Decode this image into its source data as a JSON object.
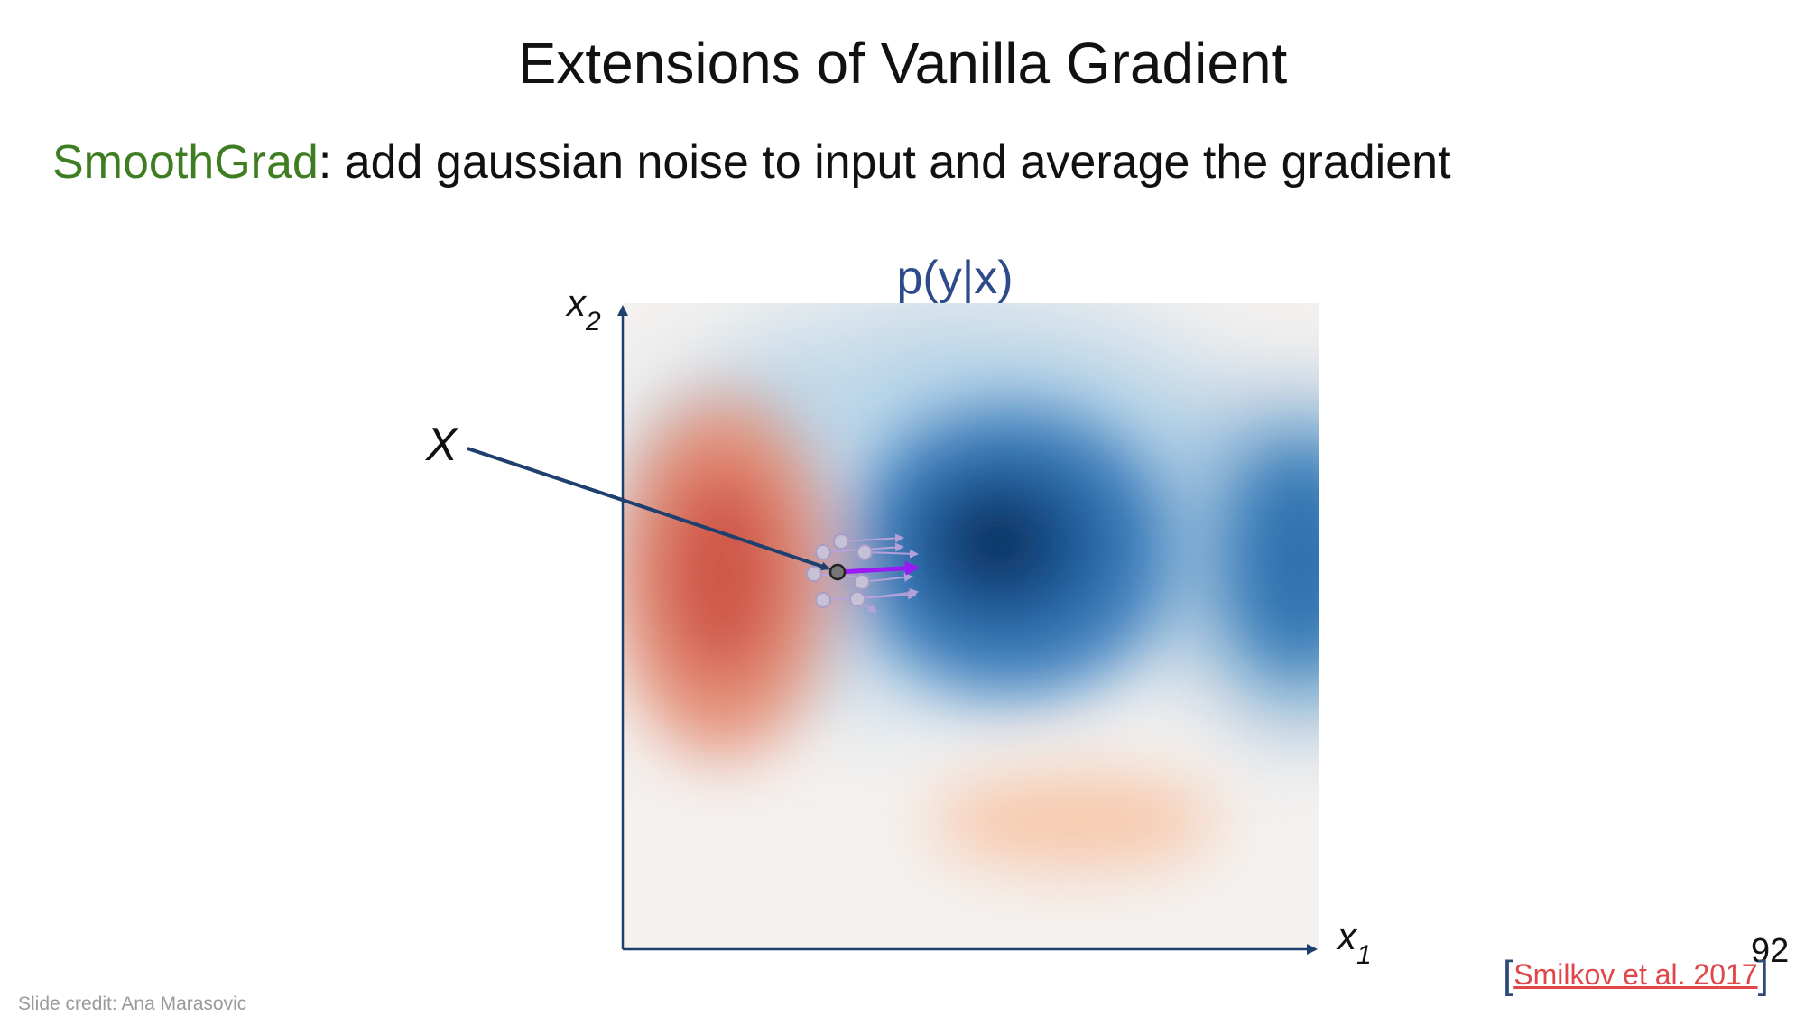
{
  "slide": {
    "title": "Extensions of Vanilla Gradient",
    "subtitle_accent": "SmoothGrad",
    "subtitle_rest": ": add gaussian noise to input and average the gradient",
    "page_number": "92",
    "citation_text": "Smilkov et al. 2017",
    "credit": "Slide credit: Ana Marasovic"
  },
  "diagram": {
    "plot_title": "p(y|x)",
    "x_axis_label": "x",
    "x_axis_subscript": "1",
    "y_axis_label": "x",
    "y_axis_subscript": "2",
    "point_label": "X"
  },
  "colors": {
    "accent_green": "#3e7d22",
    "axis_navy": "#1f3f6e",
    "gradient_purple": "#9b19f5",
    "noisy_sample_purple": "#b8a3dc",
    "link_red": "#e0464a"
  }
}
